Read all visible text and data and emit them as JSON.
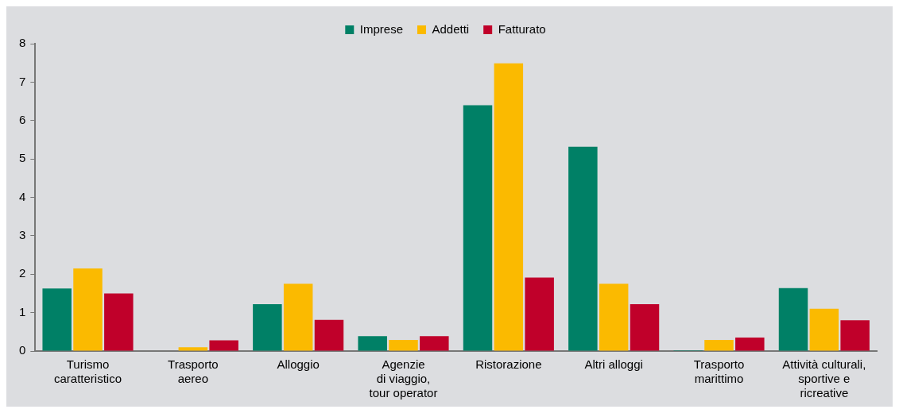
{
  "chart_data": {
    "type": "bar",
    "categories": [
      "Turismo\ncaratteristico",
      "Trasporto\naereo",
      "Alloggio",
      "Agenzie\ndi viaggio,\ntour operator",
      "Ristorazione",
      "Altri alloggi",
      "Trasporto\nmarittimo",
      "Attività culturali,\nsportive e\nricreative"
    ],
    "series": [
      {
        "name": "Imprese",
        "color": "#008066",
        "values": [
          1.63,
          0,
          1.22,
          0.39,
          6.4,
          5.32,
          0.02,
          1.64
        ]
      },
      {
        "name": "Addetti",
        "color": "#fbba00",
        "values": [
          2.15,
          0.1,
          1.75,
          0.29,
          7.49,
          1.75,
          0.29,
          1.1
        ]
      },
      {
        "name": "Fatturato",
        "color": "#c0002a",
        "values": [
          1.5,
          0.28,
          0.81,
          0.39,
          1.91,
          1.22,
          0.35,
          0.8
        ]
      }
    ],
    "ylim": [
      0,
      8
    ],
    "yticks": [
      0,
      1,
      2,
      3,
      4,
      5,
      6,
      7,
      8
    ],
    "grid": false,
    "legend": "top"
  }
}
